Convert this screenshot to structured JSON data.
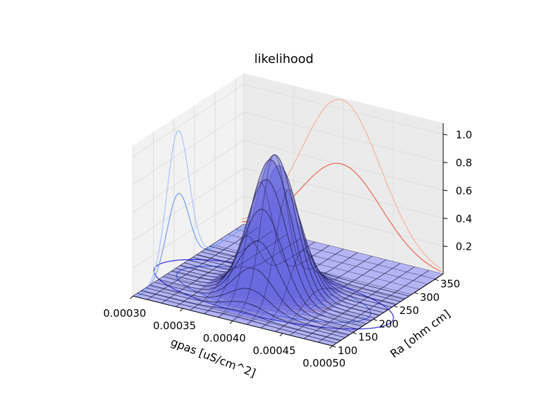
{
  "chart_data": {
    "type": "surface3d",
    "title": "likelihood",
    "xlabel": "gpas [uS/cm^2]",
    "ylabel": "Ra [ohm cm]",
    "zlabel": "",
    "x_ticks": [
      "0.00030",
      "0.00035",
      "0.00040",
      "0.00045",
      "0.00050"
    ],
    "y_ticks": [
      "100",
      "150",
      "200",
      "250",
      "300",
      "350"
    ],
    "z_ticks": [
      "0.2",
      "0.4",
      "0.6",
      "0.8",
      "1.0"
    ],
    "xlim": [
      0.0003,
      0.0005
    ],
    "ylim": [
      100,
      370
    ],
    "zlim": [
      0.0,
      1.0
    ],
    "grid": true,
    "surface": {
      "function": "gaussian2d",
      "peak": 1.0,
      "center_x": 0.0004,
      "center_y": 200,
      "sigma_x": 2e-05,
      "sigma_y": 30,
      "color": "#6a6ae0",
      "edge_color": "#1a1a40"
    },
    "marginal_x_projection": {
      "peak": 1.0,
      "color_outer": "#a6c3ff",
      "color_inner": "#6f9df5"
    },
    "marginal_y_projection": {
      "peak": 1.0,
      "color_outer": "#f7b299",
      "color_inner": "#e8664a"
    },
    "floor_contours": {
      "colors": [
        "#2b2bd6",
        "#4a5de0",
        "#9a8fd0",
        "#d98f8f",
        "#cc3355",
        "#990022"
      ]
    },
    "colors": {
      "pane": "#f2f2f2",
      "grid": "#dcdcdc",
      "surface": "#6a6ae0"
    }
  }
}
